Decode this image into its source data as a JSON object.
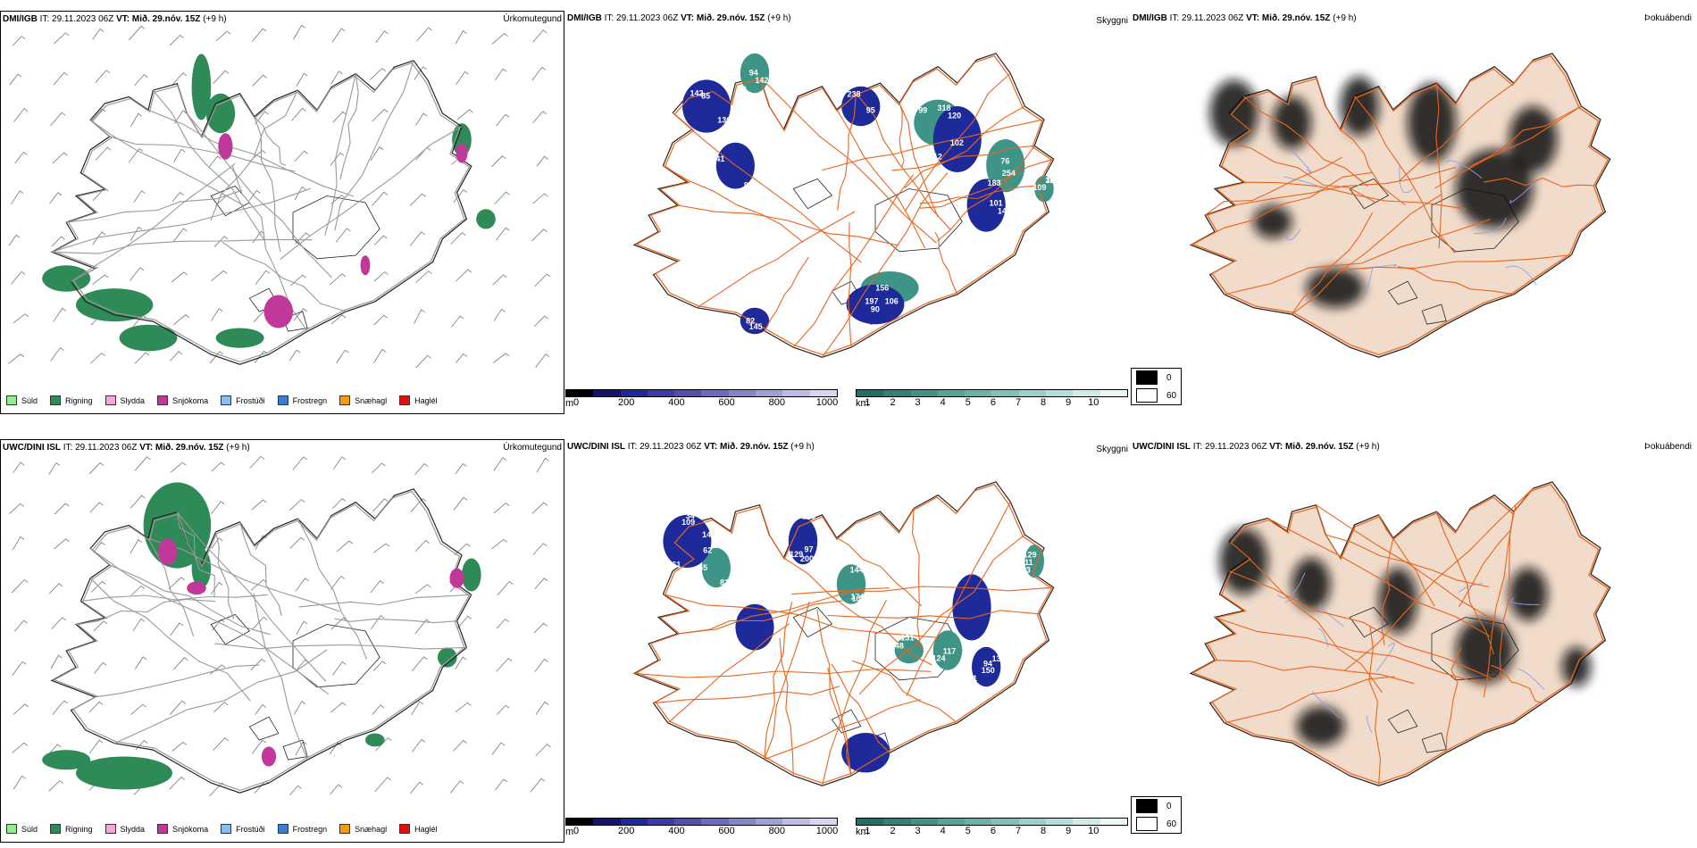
{
  "rows": [
    {
      "model": "DMI/IGB",
      "it_label": "IT:",
      "it_value": "29.11.2023 06Z",
      "vt_label": "VT:",
      "vt_value": "Mið. 29.nóv. 15Z",
      "lead": "(+9 h)",
      "precip_type_title": "Úrkomutegund",
      "visibility_title": "Skyggni",
      "fog_title": "Þokuábendi",
      "visibility_labels": [
        "85",
        "102",
        "95",
        "106",
        "101",
        "94",
        "82",
        "76",
        "87",
        "109",
        "120",
        "99",
        "156",
        "133",
        "136",
        "142",
        "238",
        "183",
        "143",
        "168",
        "145",
        "318",
        "141",
        "197",
        "112",
        "59",
        "90",
        "254",
        "142",
        "32"
      ]
    },
    {
      "model": "UWC/DINI ISL",
      "it_label": "IT:",
      "it_value": "29.11.2023 06Z",
      "vt_label": "VT:",
      "vt_value": "Mið. 29.nóv. 15Z",
      "lead": "(+9 h)",
      "precip_type_title": "Úrkomutegund",
      "visibility_title": "Skyggni",
      "fog_title": "Þokuábendi",
      "visibility_labels": [
        "109",
        "144",
        "97",
        "93",
        "94",
        "55",
        "62",
        "124",
        "129",
        "131",
        "133",
        "174",
        "140",
        "111",
        "168",
        "81",
        "11",
        "117",
        "61",
        "148",
        "200",
        "135",
        "150",
        "129",
        "34"
      ]
    }
  ],
  "precip_legend": [
    {
      "label": "Súld",
      "color": "#90ee90"
    },
    {
      "label": "Rigning",
      "color": "#2e8b57"
    },
    {
      "label": "Slydda",
      "color": "#f4a6d7"
    },
    {
      "label": "Snjókoma",
      "color": "#c0399a"
    },
    {
      "label": "Frostúði",
      "color": "#87bdf0"
    },
    {
      "label": "Frostregn",
      "color": "#3a7bd5"
    },
    {
      "label": "Snæhagl",
      "color": "#f39c12"
    },
    {
      "label": "Haglél",
      "color": "#e01010"
    }
  ],
  "height_bar": {
    "unit": "m",
    "ticks": [
      "0",
      "200",
      "400",
      "600",
      "800",
      "1000"
    ],
    "colors": [
      "#000000",
      "#141470",
      "#1e2a9a",
      "#3a3aa8",
      "#5050b0",
      "#6a6ac0",
      "#8585cc",
      "#a0a0d8",
      "#bcbce4",
      "#d6d6ef"
    ]
  },
  "km_bar": {
    "unit": "km",
    "ticks": [
      "1",
      "2",
      "3",
      "4",
      "5",
      "6",
      "7",
      "8",
      "9",
      "10"
    ],
    "colors": [
      "#1f6f6a",
      "#2f8278",
      "#3f9488",
      "#52a398",
      "#68b2a8",
      "#80c1b8",
      "#9ad0c8",
      "#b5ded8",
      "#d0ebe8",
      "#ecf7f5"
    ]
  },
  "fog_legend": [
    {
      "label": "0",
      "color": "#000000"
    },
    {
      "label": "60",
      "color": "#ffffff"
    }
  ],
  "colors": {
    "rain": "#2e8b57",
    "snow": "#c0399a",
    "visblue": "#1e2a9a",
    "visteal": "#3f9488",
    "land": "#f1dccb",
    "road": "#e8651e",
    "river": "#8aa0e8"
  }
}
